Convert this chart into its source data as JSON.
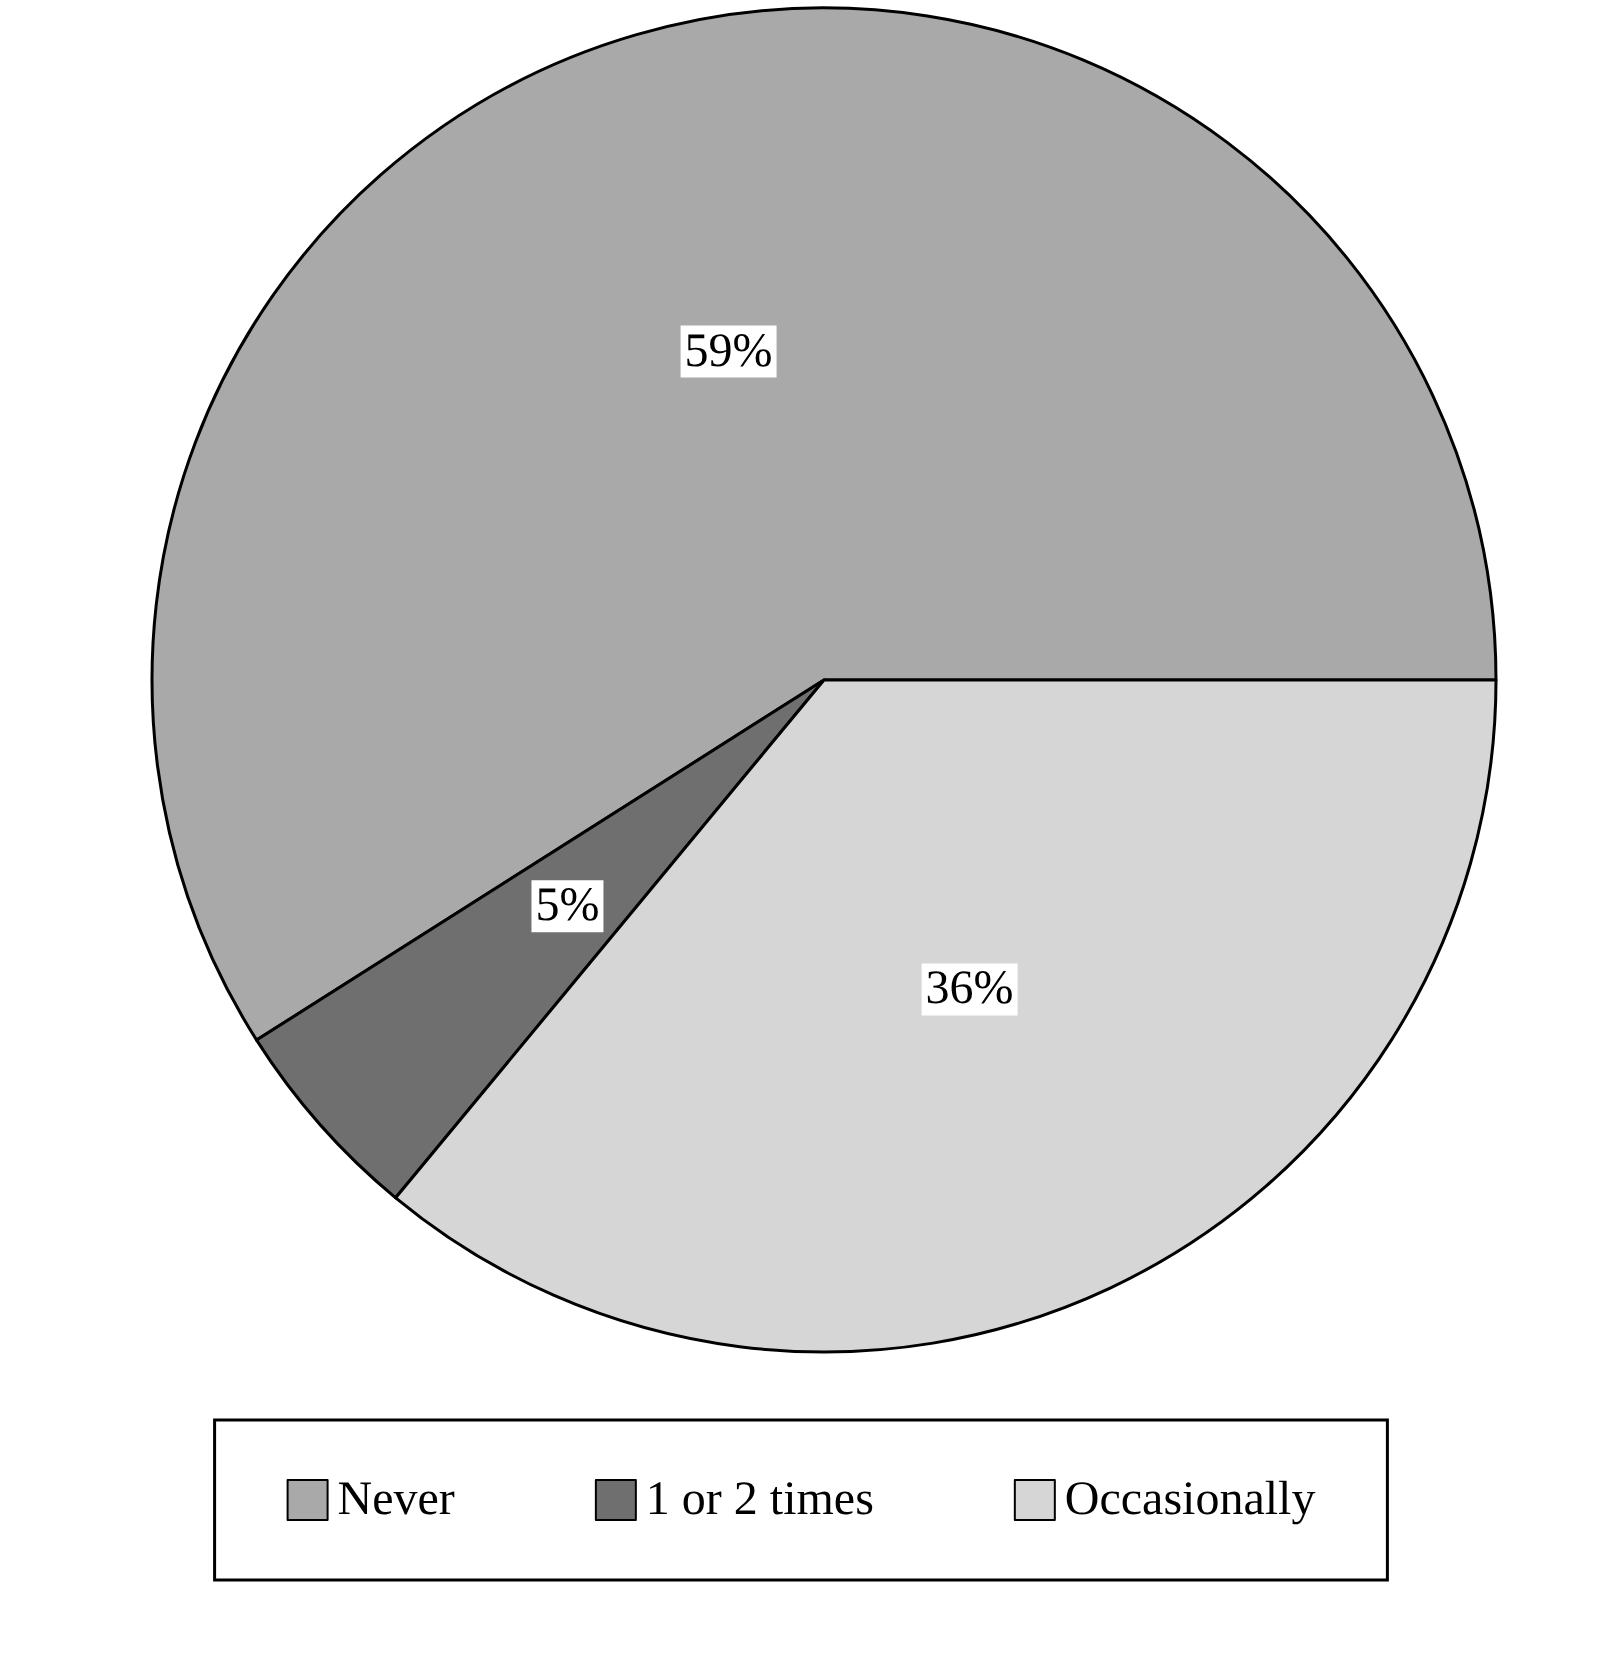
{
  "chart_data": {
    "type": "pie",
    "categories": [
      "Never",
      "1 or 2 times",
      "Occasionally"
    ],
    "values": [
      59,
      5,
      36
    ],
    "colors": [
      "#a9a9a9",
      "#6f6f6f",
      "#d6d6d6"
    ],
    "value_labels": [
      "59%",
      "5%",
      "36%"
    ],
    "legend": "bottom"
  }
}
